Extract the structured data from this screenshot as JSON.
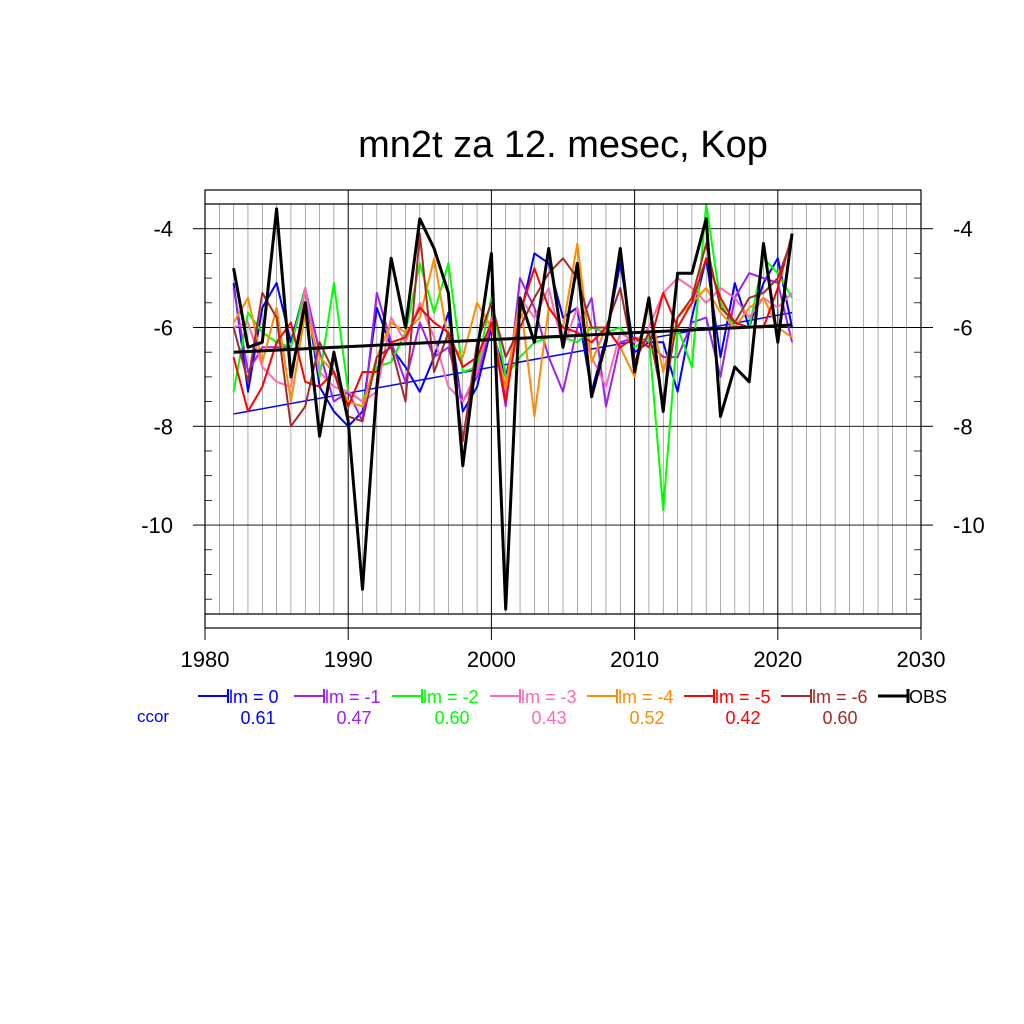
{
  "chart_data": {
    "type": "line",
    "title": "mn2t za 12. mesec, Kop",
    "xlim": [
      1980,
      2030
    ],
    "ylim": [
      -11.8,
      -3.5
    ],
    "x_ticks": [
      1980,
      1990,
      2000,
      2010,
      2020,
      2030
    ],
    "y_ticks": [
      -4,
      -6,
      -8,
      -10
    ],
    "x_tick_labels": [
      "1980",
      "1990",
      "2000",
      "2010",
      "2020",
      "2030"
    ],
    "y_tick_labels": [
      "-4",
      "-6",
      "-8",
      "-10"
    ],
    "years": [
      1982,
      1983,
      1984,
      1985,
      1986,
      1987,
      1988,
      1989,
      1990,
      1991,
      1992,
      1993,
      1994,
      1995,
      1996,
      1997,
      1998,
      1999,
      2000,
      2001,
      2002,
      2003,
      2004,
      2005,
      2006,
      2007,
      2008,
      2009,
      2010,
      2011,
      2012,
      2013,
      2014,
      2015,
      2016,
      2017,
      2018,
      2019,
      2020,
      2021
    ],
    "ccor_label": "ccor",
    "series": [
      {
        "name": "lm = 0",
        "color": "#0000ff",
        "ccor": "0.61",
        "values": [
          -5.1,
          -7.3,
          -5.6,
          -5.1,
          -6.3,
          -5.2,
          -7.2,
          -7.7,
          -8.0,
          -7.7,
          -5.6,
          -6.4,
          -6.8,
          -7.3,
          -6.6,
          -5.7,
          -7.7,
          -7.2,
          -6.0,
          -7.0,
          -5.8,
          -4.5,
          -4.7,
          -5.8,
          -5.6,
          -7.3,
          -6.2,
          -4.7,
          -6.5,
          -6.3,
          -6.3,
          -7.3,
          -5.8,
          -4.6,
          -6.6,
          -5.1,
          -6.0,
          -5.1,
          -4.6,
          -6.0
        ],
        "trend": [
          -7.75,
          -5.7
        ]
      },
      {
        "name": "lm = -1",
        "color": "#a020f0",
        "ccor": "0.47",
        "values": [
          -5.2,
          -6.9,
          -6.4,
          -6.4,
          -6.4,
          -5.2,
          -6.5,
          -7.5,
          -7.3,
          -7.9,
          -5.3,
          -6.3,
          -7.1,
          -5.9,
          -6.6,
          -6.4,
          -7.5,
          -7.0,
          -5.9,
          -7.6,
          -5.0,
          -5.6,
          -6.6,
          -7.3,
          -6.0,
          -5.4,
          -7.6,
          -6.3,
          -6.2,
          -6.3,
          -6.6,
          -6.6,
          -5.9,
          -5.8,
          -7.0,
          -5.4,
          -4.9,
          -5.0,
          -5.1,
          -6.3
        ]
      },
      {
        "name": "lm = -2",
        "color": "#00ff00",
        "ccor": "0.60",
        "values": [
          -7.3,
          -5.7,
          -6.1,
          -6.3,
          -6.4,
          -5.2,
          -7.0,
          -5.1,
          -7.3,
          -7.5,
          -6.8,
          -6.7,
          -6.1,
          -4.7,
          -5.7,
          -4.7,
          -6.9,
          -6.8,
          -5.4,
          -7.0,
          -6.6,
          -6.3,
          -6.2,
          -6.2,
          -6.3,
          -6.0,
          -6.1,
          -6.0,
          -6.4,
          -6.2,
          -9.7,
          -6.0,
          -6.8,
          -3.5,
          -5.5,
          -6.0,
          -6.0,
          -4.6,
          -4.9,
          -5.4
        ]
      },
      {
        "name": "lm = -3",
        "color": "#ff69b4",
        "ccor": "0.43",
        "values": [
          -6.0,
          -5.9,
          -6.8,
          -7.1,
          -7.2,
          -5.2,
          -6.9,
          -7.2,
          -7.3,
          -7.5,
          -7.3,
          -5.8,
          -6.3,
          -5.5,
          -6.2,
          -7.2,
          -7.5,
          -6.9,
          -5.8,
          -7.4,
          -5.4,
          -5.8,
          -5.2,
          -6.4,
          -5.6,
          -6.6,
          -7.2,
          -6.1,
          -6.3,
          -6.0,
          -5.3,
          -5.0,
          -5.2,
          -5.5,
          -5.2,
          -5.4,
          -5.8,
          -5.4,
          -5.6,
          -5.3
        ]
      },
      {
        "name": "lm = -4",
        "color": "#ff8c00",
        "ccor": "0.52",
        "values": [
          -5.9,
          -5.4,
          -6.7,
          -5.6,
          -7.5,
          -5.7,
          -6.6,
          -6.9,
          -7.5,
          -7.6,
          -6.6,
          -5.9,
          -6.1,
          -5.8,
          -4.6,
          -6.3,
          -6.6,
          -5.5,
          -6.0,
          -7.2,
          -5.4,
          -7.8,
          -5.6,
          -6.0,
          -4.3,
          -6.7,
          -6.0,
          -6.4,
          -7.0,
          -5.5,
          -6.9,
          -5.8,
          -5.5,
          -5.2,
          -5.7,
          -6.0,
          -5.6,
          -5.4,
          -6.0,
          -6.2
        ]
      },
      {
        "name": "lm = -5",
        "color": "#ff0000",
        "ccor": "0.42",
        "values": [
          -6.6,
          -7.7,
          -7.2,
          -6.3,
          -5.9,
          -7.1,
          -7.2,
          -6.9,
          -7.6,
          -6.9,
          -6.9,
          -6.3,
          -6.2,
          -5.6,
          -5.9,
          -6.1,
          -6.8,
          -6.6,
          -5.9,
          -7.5,
          -5.7,
          -4.8,
          -5.6,
          -6.0,
          -6.1,
          -6.3,
          -6.0,
          -6.4,
          -6.2,
          -6.4,
          -5.3,
          -6.0,
          -5.5,
          -4.6,
          -5.4,
          -5.9,
          -6.0,
          -6.0,
          -5.2,
          -4.1
        ]
      },
      {
        "name": "lm = -6",
        "color": "#a52a2a",
        "ccor": "0.60",
        "values": [
          -6.0,
          -7.1,
          -5.3,
          -5.8,
          -8.0,
          -7.6,
          -6.3,
          -6.9,
          -7.8,
          -7.9,
          -6.6,
          -6.4,
          -7.5,
          -4.1,
          -6.9,
          -6.1,
          -8.3,
          -6.3,
          -5.5,
          -6.6,
          -6.0,
          -5.4,
          -4.9,
          -4.6,
          -5.0,
          -6.0,
          -6.0,
          -5.2,
          -6.7,
          -6.1,
          -7.5,
          -5.8,
          -5.4,
          -4.3,
          -5.6,
          -5.9,
          -5.4,
          -5.3,
          -5.0,
          -4.2
        ]
      },
      {
        "name": "OBS",
        "color": "#000000",
        "ccor": "",
        "values": [
          -4.8,
          -6.4,
          -6.3,
          -3.6,
          -7.0,
          -5.5,
          -8.2,
          -6.5,
          -7.9,
          -11.3,
          -7.2,
          -4.6,
          -6.0,
          -3.8,
          -4.4,
          -5.3,
          -8.8,
          -6.5,
          -4.5,
          -11.7,
          -5.4,
          -6.3,
          -4.4,
          -6.4,
          -4.7,
          -7.4,
          -6.3,
          -4.4,
          -6.9,
          -5.4,
          -7.7,
          -4.9,
          -4.9,
          -3.8,
          -7.8,
          -6.8,
          -7.1,
          -4.3,
          -6.3,
          -4.1
        ],
        "trend": [
          -6.5,
          -5.95
        ]
      }
    ]
  }
}
